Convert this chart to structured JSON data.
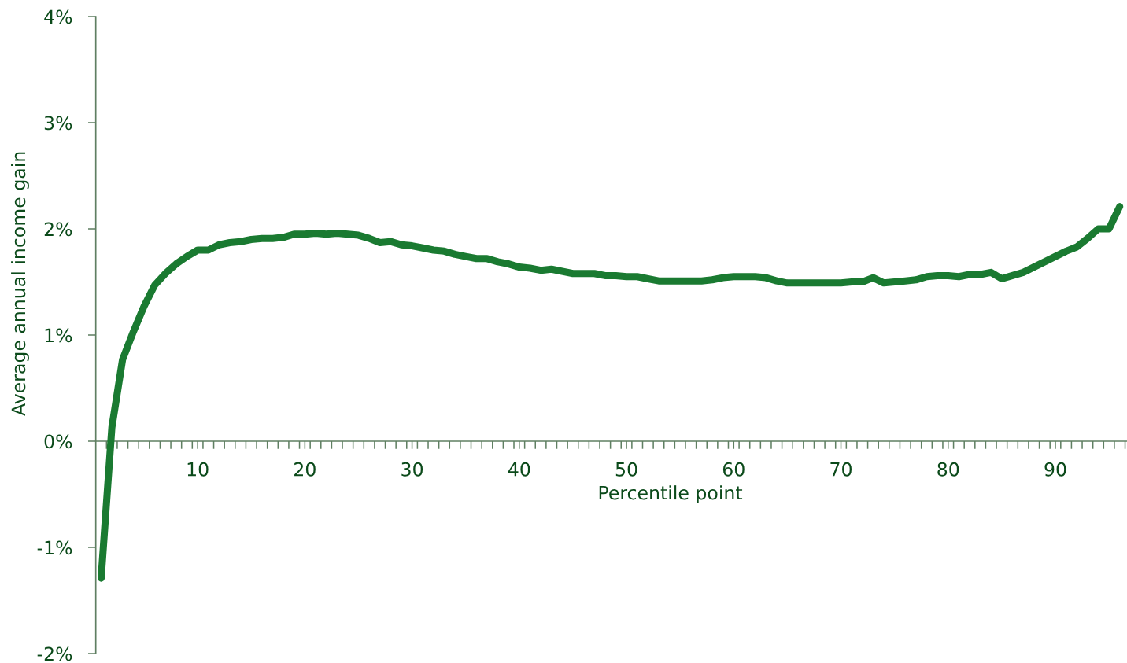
{
  "chart_data": {
    "type": "line",
    "xlabel": "Percentile point",
    "ylabel": "Average annual income gain",
    "x": [
      1,
      2,
      3,
      4,
      5,
      6,
      7,
      8,
      9,
      10,
      11,
      12,
      13,
      14,
      15,
      16,
      17,
      18,
      19,
      20,
      21,
      22,
      23,
      24,
      25,
      26,
      27,
      28,
      29,
      30,
      31,
      32,
      33,
      34,
      35,
      36,
      37,
      38,
      39,
      40,
      41,
      42,
      43,
      44,
      45,
      46,
      47,
      48,
      49,
      50,
      51,
      52,
      53,
      54,
      55,
      56,
      57,
      58,
      59,
      60,
      61,
      62,
      63,
      64,
      65,
      66,
      67,
      68,
      69,
      70,
      71,
      72,
      73,
      74,
      75,
      76,
      77,
      78,
      79,
      80,
      81,
      82,
      83,
      84,
      85,
      86,
      87,
      88,
      89,
      90,
      91,
      92,
      93,
      94,
      95,
      96
    ],
    "series": [
      {
        "color": "#1a7a31",
        "values": [
          -1.29,
          0.13,
          0.77,
          1.03,
          1.27,
          1.47,
          1.58,
          1.67,
          1.74,
          1.8,
          1.8,
          1.85,
          1.87,
          1.88,
          1.9,
          1.91,
          1.91,
          1.92,
          1.95,
          1.95,
          1.96,
          1.95,
          1.96,
          1.95,
          1.94,
          1.91,
          1.87,
          1.88,
          1.85,
          1.84,
          1.82,
          1.8,
          1.79,
          1.76,
          1.74,
          1.72,
          1.72,
          1.69,
          1.67,
          1.64,
          1.63,
          1.61,
          1.62,
          1.6,
          1.58,
          1.58,
          1.58,
          1.56,
          1.56,
          1.55,
          1.55,
          1.53,
          1.51,
          1.51,
          1.51,
          1.51,
          1.51,
          1.52,
          1.54,
          1.55,
          1.55,
          1.55,
          1.54,
          1.51,
          1.49,
          1.49,
          1.49,
          1.49,
          1.49,
          1.49,
          1.5,
          1.5,
          1.54,
          1.49,
          1.5,
          1.51,
          1.52,
          1.55,
          1.56,
          1.56,
          1.55,
          1.57,
          1.57,
          1.59,
          1.53,
          1.56,
          1.59,
          1.64,
          1.69,
          1.74,
          1.79,
          1.83,
          1.91,
          2.0,
          2.0,
          2.21
        ]
      }
    ],
    "xlim": [
      0.5,
      96.68
    ],
    "xticks": [
      {
        "value": 1.5,
        "label": null
      },
      {
        "value": 2.5,
        "label": null
      },
      {
        "value": 3.5,
        "label": null
      },
      {
        "value": 4.5,
        "label": null
      },
      {
        "value": 5.5,
        "label": null
      },
      {
        "value": 6.5,
        "label": null
      },
      {
        "value": 7.5,
        "label": null
      },
      {
        "value": 8.5,
        "label": null
      },
      {
        "value": 9.5,
        "label": null
      },
      {
        "value": 10,
        "label": "10"
      },
      {
        "value": 10.5,
        "label": null
      },
      {
        "value": 11.5,
        "label": null
      },
      {
        "value": 12.5,
        "label": null
      },
      {
        "value": 13.5,
        "label": null
      },
      {
        "value": 14.5,
        "label": null
      },
      {
        "value": 15.5,
        "label": null
      },
      {
        "value": 16.5,
        "label": null
      },
      {
        "value": 17.5,
        "label": null
      },
      {
        "value": 18.5,
        "label": null
      },
      {
        "value": 19.5,
        "label": null
      },
      {
        "value": 20,
        "label": "20"
      },
      {
        "value": 20.5,
        "label": null
      },
      {
        "value": 21.5,
        "label": null
      },
      {
        "value": 22.5,
        "label": null
      },
      {
        "value": 23.5,
        "label": null
      },
      {
        "value": 24.5,
        "label": null
      },
      {
        "value": 25.5,
        "label": null
      },
      {
        "value": 26.5,
        "label": null
      },
      {
        "value": 27.5,
        "label": null
      },
      {
        "value": 28.5,
        "label": null
      },
      {
        "value": 29.5,
        "label": null
      },
      {
        "value": 30,
        "label": "30"
      },
      {
        "value": 30.5,
        "label": null
      },
      {
        "value": 31.5,
        "label": null
      },
      {
        "value": 32.5,
        "label": null
      },
      {
        "value": 33.5,
        "label": null
      },
      {
        "value": 34.5,
        "label": null
      },
      {
        "value": 35.5,
        "label": null
      },
      {
        "value": 36.5,
        "label": null
      },
      {
        "value": 37.5,
        "label": null
      },
      {
        "value": 38.5,
        "label": null
      },
      {
        "value": 39.5,
        "label": null
      },
      {
        "value": 40,
        "label": "40"
      },
      {
        "value": 40.5,
        "label": null
      },
      {
        "value": 41.5,
        "label": null
      },
      {
        "value": 42.5,
        "label": null
      },
      {
        "value": 43.5,
        "label": null
      },
      {
        "value": 44.5,
        "label": null
      },
      {
        "value": 45.5,
        "label": null
      },
      {
        "value": 46.5,
        "label": null
      },
      {
        "value": 47.5,
        "label": null
      },
      {
        "value": 48.5,
        "label": null
      },
      {
        "value": 49.5,
        "label": null
      },
      {
        "value": 50,
        "label": "50"
      },
      {
        "value": 50.5,
        "label": null
      },
      {
        "value": 51.5,
        "label": null
      },
      {
        "value": 52.5,
        "label": null
      },
      {
        "value": 53.5,
        "label": null
      },
      {
        "value": 54.5,
        "label": null
      },
      {
        "value": 55.5,
        "label": null
      },
      {
        "value": 56.5,
        "label": null
      },
      {
        "value": 57.5,
        "label": null
      },
      {
        "value": 58.5,
        "label": null
      },
      {
        "value": 59.5,
        "label": null
      },
      {
        "value": 60,
        "label": "60"
      },
      {
        "value": 60.5,
        "label": null
      },
      {
        "value": 61.5,
        "label": null
      },
      {
        "value": 62.5,
        "label": null
      },
      {
        "value": 63.5,
        "label": null
      },
      {
        "value": 64.5,
        "label": null
      },
      {
        "value": 65.5,
        "label": null
      },
      {
        "value": 66.5,
        "label": null
      },
      {
        "value": 67.5,
        "label": null
      },
      {
        "value": 68.5,
        "label": null
      },
      {
        "value": 69.5,
        "label": null
      },
      {
        "value": 70,
        "label": "70"
      },
      {
        "value": 70.5,
        "label": null
      },
      {
        "value": 71.5,
        "label": null
      },
      {
        "value": 72.5,
        "label": null
      },
      {
        "value": 73.5,
        "label": null
      },
      {
        "value": 74.5,
        "label": null
      },
      {
        "value": 75.5,
        "label": null
      },
      {
        "value": 76.5,
        "label": null
      },
      {
        "value": 77.5,
        "label": null
      },
      {
        "value": 78.5,
        "label": null
      },
      {
        "value": 79.5,
        "label": null
      },
      {
        "value": 80,
        "label": "80"
      },
      {
        "value": 80.5,
        "label": null
      },
      {
        "value": 81.5,
        "label": null
      },
      {
        "value": 82.5,
        "label": null
      },
      {
        "value": 83.5,
        "label": null
      },
      {
        "value": 84.5,
        "label": null
      },
      {
        "value": 85.5,
        "label": null
      },
      {
        "value": 86.5,
        "label": null
      },
      {
        "value": 87.5,
        "label": null
      },
      {
        "value": 88.5,
        "label": null
      },
      {
        "value": 89.5,
        "label": null
      },
      {
        "value": 90,
        "label": "90"
      },
      {
        "value": 90.5,
        "label": null
      },
      {
        "value": 91.5,
        "label": null
      },
      {
        "value": 92.5,
        "label": null
      },
      {
        "value": 93.5,
        "label": null
      },
      {
        "value": 94.5,
        "label": null
      },
      {
        "value": 95.5,
        "label": null
      },
      {
        "value": 96.5,
        "label": null
      }
    ],
    "ylim": [
      -2,
      4
    ],
    "yticks": [
      {
        "value": -2,
        "label": "-2%"
      },
      {
        "value": -1,
        "label": "-1%"
      },
      {
        "value": 0,
        "label": "0%"
      },
      {
        "value": 1,
        "label": "1%"
      },
      {
        "value": 2,
        "label": "2%"
      },
      {
        "value": 3,
        "label": "3%"
      },
      {
        "value": 4,
        "label": "4%"
      }
    ]
  }
}
